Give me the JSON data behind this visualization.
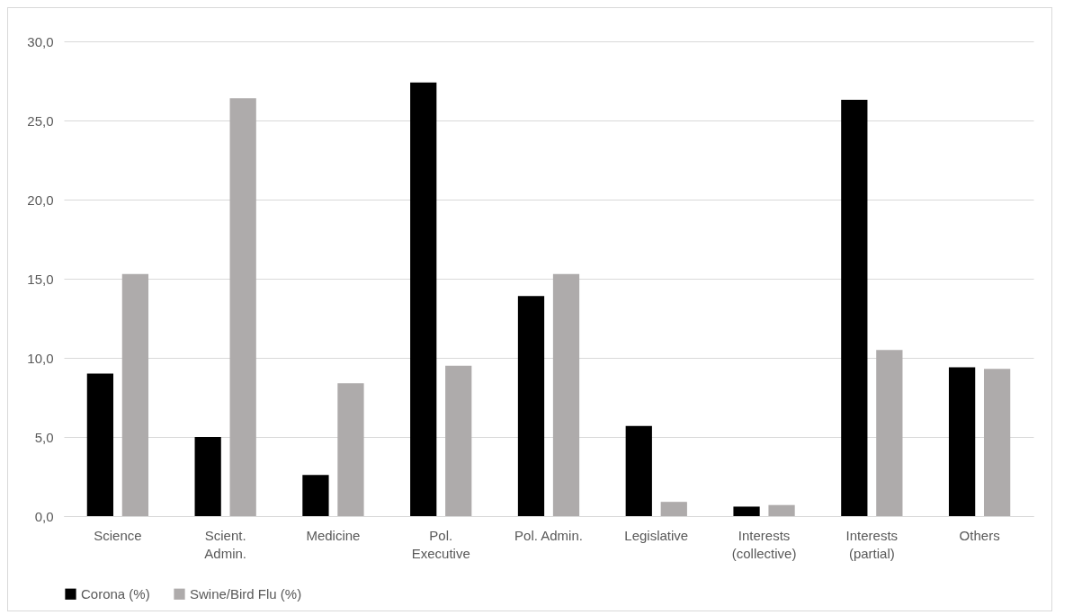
{
  "chart_data": {
    "type": "bar",
    "categories": [
      "Science",
      "Scient.\nAdmin.",
      "Medicine",
      "Pol.\nExecutive",
      "Pol. Admin.",
      "Legislative",
      "Interests\n(collective)",
      "Interests\n(partial)",
      "Others"
    ],
    "series": [
      {
        "name": "Corona (%)",
        "color": "#000000",
        "values": [
          9.0,
          5.0,
          2.6,
          27.4,
          13.9,
          5.7,
          0.6,
          26.3,
          9.4
        ]
      },
      {
        "name": "Swine/Bird Flu (%)",
        "color": "#aeabab",
        "values": [
          15.3,
          26.4,
          8.4,
          9.5,
          15.3,
          0.9,
          0.7,
          10.5,
          9.3
        ]
      }
    ],
    "ylim": [
      0,
      30
    ],
    "yticks": [
      {
        "value": 0,
        "label": "0,0"
      },
      {
        "value": 5,
        "label": "5,0"
      },
      {
        "value": 10,
        "label": "10,0"
      },
      {
        "value": 15,
        "label": "15,0"
      },
      {
        "value": 20,
        "label": "20,0"
      },
      {
        "value": 25,
        "label": "25,0"
      },
      {
        "value": 30,
        "label": "30,0"
      }
    ],
    "grid": "y",
    "legend": "bottom"
  }
}
